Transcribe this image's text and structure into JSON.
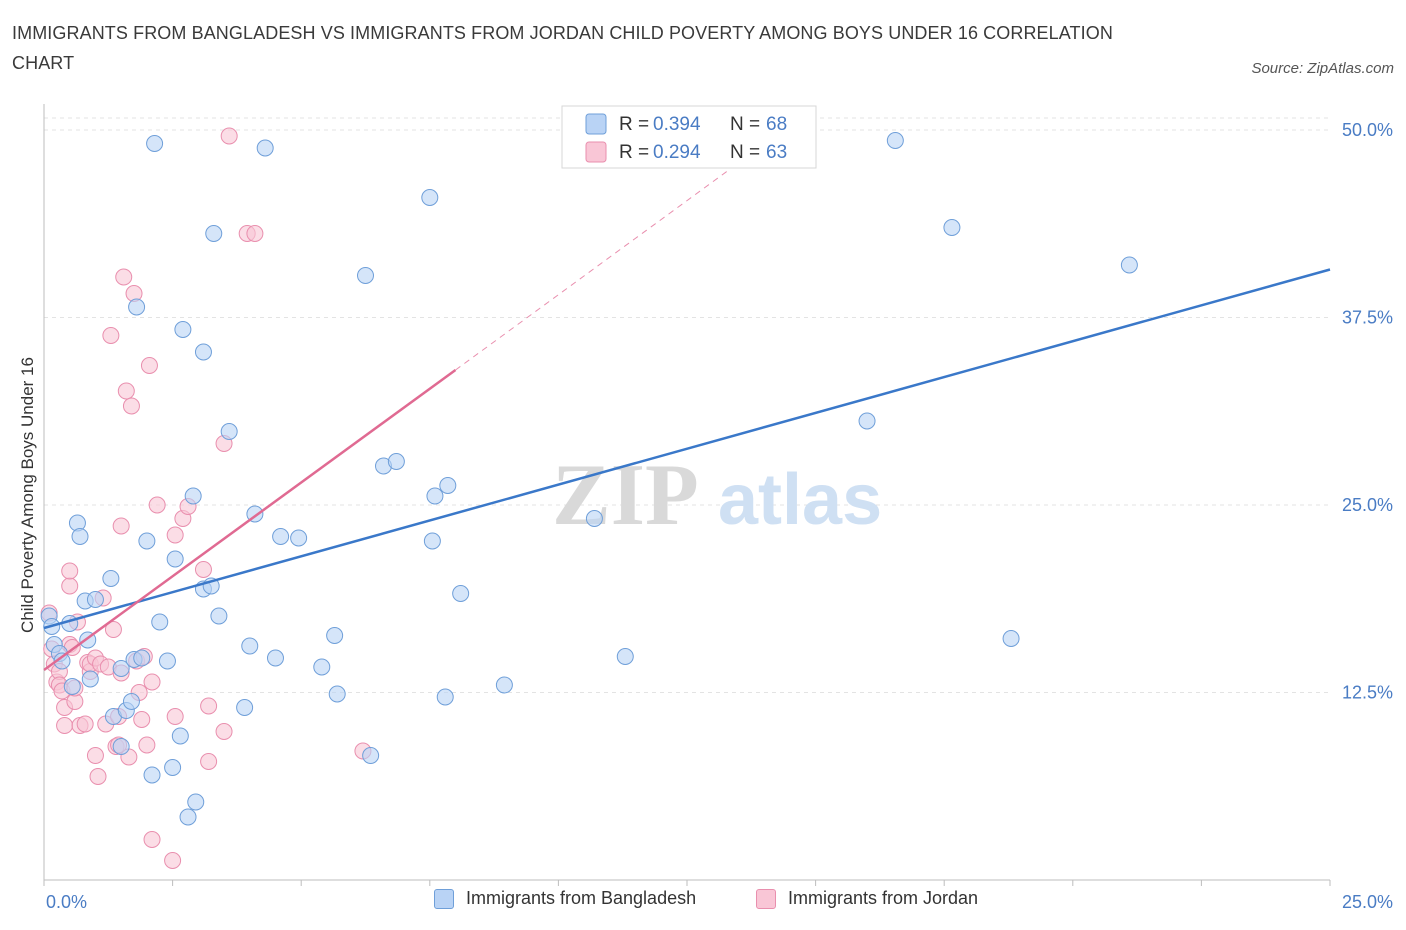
{
  "header": {
    "title": "IMMIGRANTS FROM BANGLADESH VS IMMIGRANTS FROM JORDAN CHILD POVERTY AMONG BOYS UNDER 16 CORRELATION CHART",
    "source": "Source: ZipAtlas.com"
  },
  "watermark": {
    "part1": "ZIP",
    "part2": "atlas"
  },
  "colors": {
    "bangladesh_fill": "#b9d3f5",
    "bangladesh_stroke": "#6f9fd9",
    "bangladesh_line": "#3a78c9",
    "jordan_fill": "#f9c6d6",
    "jordan_stroke": "#e98fae",
    "jordan_line": "#e06a92",
    "tick_label": "#4a7cc4",
    "grid": "#e3e3e3"
  },
  "legend": {
    "r_label": "R =",
    "n_label": "N =",
    "entries": [
      {
        "r": "0.394",
        "n": "68"
      },
      {
        "r": "0.294",
        "n": "63"
      }
    ]
  },
  "chart_data": {
    "type": "scatter",
    "title": "IMMIGRANTS FROM BANGLADESH VS IMMIGRANTS FROM JORDAN CHILD POVERTY AMONG BOYS UNDER 16 CORRELATION CHART",
    "xlabel": "",
    "ylabel": "Child Poverty Among Boys Under 16",
    "xlim": [
      0,
      25
    ],
    "ylim": [
      0,
      50
    ],
    "x_tick_labels": [
      "0.0%",
      "25.0%"
    ],
    "y_ticks": [
      12.5,
      25.0,
      37.5,
      50.0
    ],
    "y_tick_labels": [
      "12.5%",
      "25.0%",
      "37.5%",
      "50.0%"
    ],
    "grid": true,
    "legend_position": "top-center",
    "series": [
      {
        "name": "Immigrants from Bangladesh",
        "R": 0.394,
        "N": 68,
        "trend": {
          "x": [
            0,
            25
          ],
          "y": [
            16.8,
            40.7
          ]
        },
        "points": [
          [
            0.1,
            17.6
          ],
          [
            0.15,
            16.9
          ],
          [
            0.2,
            15.7
          ],
          [
            0.3,
            15.1
          ],
          [
            0.35,
            14.6
          ],
          [
            0.5,
            17.1
          ],
          [
            0.55,
            12.9
          ],
          [
            0.65,
            23.8
          ],
          [
            0.7,
            22.9
          ],
          [
            0.8,
            18.6
          ],
          [
            0.85,
            16.0
          ],
          [
            0.9,
            13.4
          ],
          [
            1.0,
            18.7
          ],
          [
            1.3,
            20.1
          ],
          [
            1.35,
            10.9
          ],
          [
            1.5,
            8.9
          ],
          [
            1.5,
            14.1
          ],
          [
            1.6,
            11.3
          ],
          [
            1.7,
            11.9
          ],
          [
            1.75,
            14.7
          ],
          [
            1.8,
            38.2
          ],
          [
            1.9,
            14.8
          ],
          [
            2.0,
            22.6
          ],
          [
            2.1,
            7.0
          ],
          [
            2.15,
            49.1
          ],
          [
            2.25,
            17.2
          ],
          [
            2.4,
            14.6
          ],
          [
            2.5,
            7.5
          ],
          [
            2.55,
            21.4
          ],
          [
            2.65,
            9.6
          ],
          [
            2.7,
            36.7
          ],
          [
            2.8,
            4.2
          ],
          [
            2.9,
            25.6
          ],
          [
            2.95,
            5.2
          ],
          [
            3.1,
            35.2
          ],
          [
            3.1,
            19.4
          ],
          [
            3.25,
            19.6
          ],
          [
            3.3,
            43.1
          ],
          [
            3.4,
            17.6
          ],
          [
            3.6,
            29.9
          ],
          [
            3.9,
            11.5
          ],
          [
            4.0,
            15.6
          ],
          [
            4.1,
            24.4
          ],
          [
            4.3,
            48.8
          ],
          [
            4.5,
            14.8
          ],
          [
            4.6,
            22.9
          ],
          [
            4.95,
            22.8
          ],
          [
            5.4,
            14.2
          ],
          [
            5.65,
            16.3
          ],
          [
            5.7,
            12.4
          ],
          [
            6.25,
            40.3
          ],
          [
            6.35,
            8.3
          ],
          [
            6.6,
            27.6
          ],
          [
            6.85,
            27.9
          ],
          [
            7.5,
            45.5
          ],
          [
            7.6,
            25.6
          ],
          [
            7.8,
            12.2
          ],
          [
            7.85,
            26.3
          ],
          [
            7.55,
            22.6
          ],
          [
            8.1,
            19.1
          ],
          [
            8.95,
            13.0
          ],
          [
            10.7,
            24.1
          ],
          [
            11.3,
            14.9
          ],
          [
            16.0,
            30.6
          ],
          [
            16.55,
            49.3
          ],
          [
            17.65,
            43.5
          ],
          [
            18.8,
            16.1
          ],
          [
            21.1,
            41.0
          ]
        ]
      },
      {
        "name": "Immigrants from Jordan",
        "R": 0.294,
        "N": 63,
        "trend": {
          "x": [
            0,
            8.0
          ],
          "y": [
            14.0,
            34.0
          ]
        },
        "trend_extension": {
          "x": [
            8.0,
            13.3
          ],
          "y": [
            34.0,
            47.3
          ]
        },
        "points": [
          [
            0.1,
            17.8
          ],
          [
            0.15,
            15.4
          ],
          [
            0.2,
            14.4
          ],
          [
            0.25,
            13.2
          ],
          [
            0.3,
            13.9
          ],
          [
            0.3,
            13.0
          ],
          [
            0.35,
            12.6
          ],
          [
            0.4,
            10.3
          ],
          [
            0.4,
            11.5
          ],
          [
            0.5,
            15.7
          ],
          [
            0.5,
            19.6
          ],
          [
            0.5,
            20.6
          ],
          [
            0.55,
            15.5
          ],
          [
            0.6,
            11.9
          ],
          [
            0.6,
            12.8
          ],
          [
            0.65,
            17.2
          ],
          [
            0.7,
            10.3
          ],
          [
            0.8,
            10.4
          ],
          [
            0.85,
            14.5
          ],
          [
            0.9,
            13.9
          ],
          [
            0.9,
            14.4
          ],
          [
            1.0,
            8.3
          ],
          [
            1.0,
            14.8
          ],
          [
            1.05,
            6.9
          ],
          [
            1.1,
            14.4
          ],
          [
            1.15,
            18.8
          ],
          [
            1.2,
            10.4
          ],
          [
            1.25,
            14.2
          ],
          [
            1.35,
            16.7
          ],
          [
            1.4,
            8.9
          ],
          [
            1.45,
            10.9
          ],
          [
            1.45,
            9.0
          ],
          [
            1.5,
            13.8
          ],
          [
            1.5,
            23.6
          ],
          [
            1.55,
            40.2
          ],
          [
            1.6,
            32.6
          ],
          [
            1.65,
            8.2
          ],
          [
            1.7,
            31.6
          ],
          [
            1.75,
            39.1
          ],
          [
            1.8,
            14.6
          ],
          [
            1.85,
            12.5
          ],
          [
            1.9,
            10.7
          ],
          [
            1.95,
            14.9
          ],
          [
            2.0,
            9.0
          ],
          [
            2.05,
            34.3
          ],
          [
            2.1,
            13.2
          ],
          [
            2.1,
            2.7
          ],
          [
            2.2,
            25.0
          ],
          [
            2.5,
            1.3
          ],
          [
            2.55,
            10.9
          ],
          [
            2.55,
            23.0
          ],
          [
            2.7,
            24.1
          ],
          [
            2.8,
            24.9
          ],
          [
            3.1,
            20.7
          ],
          [
            3.2,
            11.6
          ],
          [
            3.2,
            7.9
          ],
          [
            3.5,
            29.1
          ],
          [
            3.5,
            9.9
          ],
          [
            3.6,
            49.6
          ],
          [
            3.95,
            43.1
          ],
          [
            4.1,
            43.1
          ],
          [
            6.2,
            8.6
          ],
          [
            1.3,
            36.3
          ]
        ]
      }
    ]
  },
  "legend_bottom": {
    "items": [
      "Immigrants from Bangladesh",
      "Immigrants from Jordan"
    ]
  }
}
